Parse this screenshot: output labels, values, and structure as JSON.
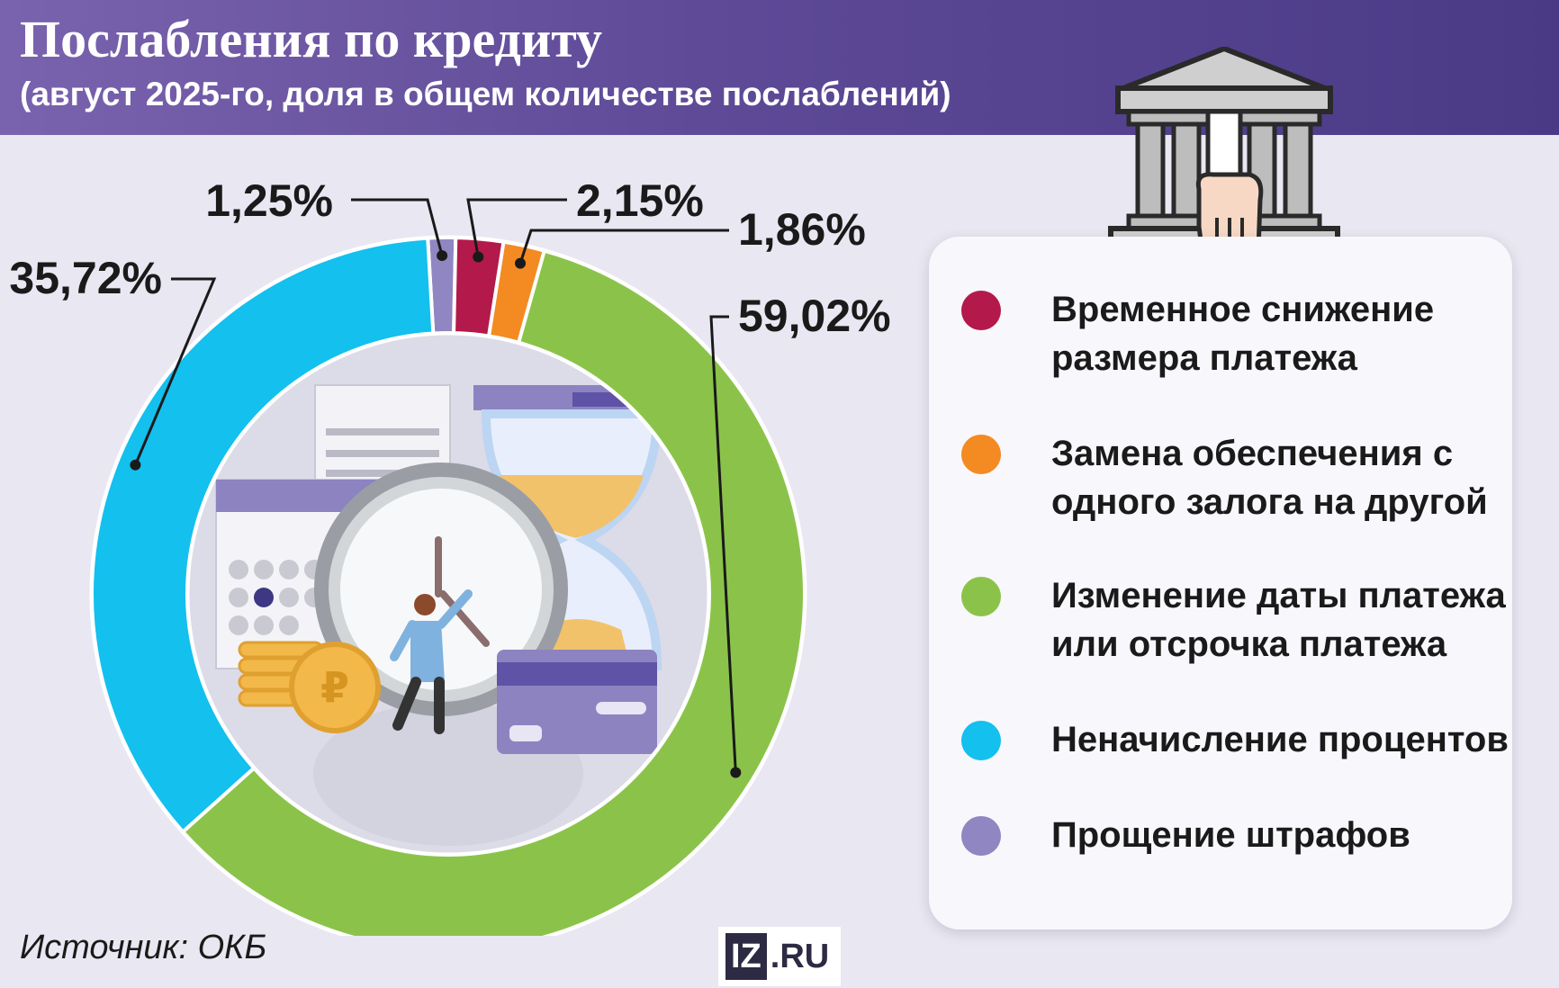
{
  "header": {
    "title": "Послабления по кредиту",
    "subtitle": "(август 2025-го, доля в общем количестве послаблений)"
  },
  "chart_data": {
    "type": "pie",
    "variant": "donut",
    "title": "Послабления по кредиту",
    "subtitle": "(август 2025-го, доля в общем количестве послаблений)",
    "series": [
      {
        "name": "Прощение штрафов",
        "value": 1.25,
        "label": "1,25%",
        "color": "#8f86c2"
      },
      {
        "name": "Временное снижение размера платежа",
        "value": 2.15,
        "label": "2,15%",
        "color": "#b4194b"
      },
      {
        "name": "Замена обеспечения с одного залога на другой",
        "value": 1.86,
        "label": "1,86%",
        "color": "#f48a22"
      },
      {
        "name": "Изменение даты платежа или отсрочка платежа",
        "value": 59.02,
        "label": "59,02%",
        "color": "#8bc34a"
      },
      {
        "name": "Неначисление процентов",
        "value": 35.72,
        "label": "35,72%",
        "color": "#13c0ee"
      }
    ],
    "legend_position": "right"
  },
  "legend": {
    "items": [
      {
        "label": "Временное снижение размера платежа",
        "color": "#b4194b"
      },
      {
        "label": "Замена обеспечения с одного залога на другой",
        "color": "#f48a22"
      },
      {
        "label": "Изменение даты платежа или отсрочка платежа",
        "color": "#8bc34a"
      },
      {
        "label": "Неначисление процентов",
        "color": "#13c0ee"
      },
      {
        "label": "Прощение штрафов",
        "color": "#8f86c2"
      }
    ]
  },
  "footer": {
    "source": "Источник: ОКБ",
    "logo_left": "IZ",
    "logo_right": ".RU"
  },
  "icons": {
    "bank": "bank-building-icon",
    "hand": "hand-icon",
    "illustration": "clock-hourglass-calendar-coins-card-illustration"
  }
}
